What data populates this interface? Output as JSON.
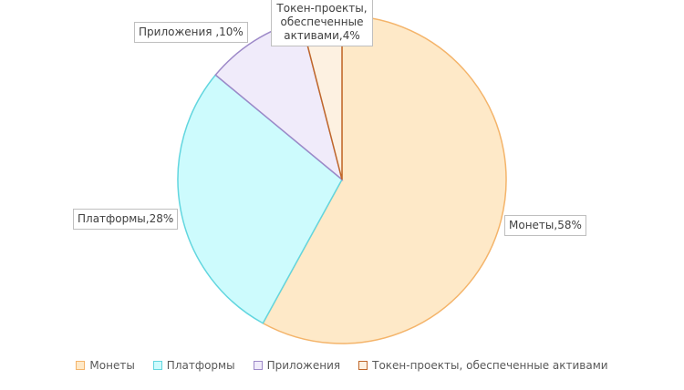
{
  "chart_data": {
    "type": "pie",
    "categories": [
      "Монеты",
      "Платформы",
      "Приложения",
      "Токен-проекты, обеспеченные активами"
    ],
    "values": [
      58,
      28,
      10,
      4
    ],
    "value_labels": [
      "Монеты,58%",
      "Платформы,28%",
      "Приложения ,10%",
      "Токен-проекты, обеспеченные активами,4%"
    ],
    "colors": [
      "#fee9c8",
      "#cdfbfd",
      "#f0ebfa",
      "#fdf1e1"
    ],
    "edge_colors": [
      "#f4b46a",
      "#62d6df",
      "#9d89c8",
      "#c0672a"
    ],
    "legend": "bottom"
  }
}
